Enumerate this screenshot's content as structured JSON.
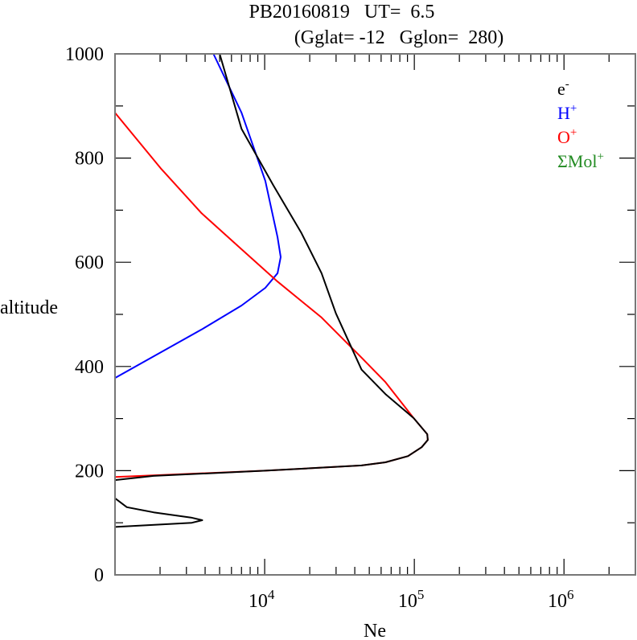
{
  "chart_data": {
    "type": "line",
    "title_line1": "PB20160819   UT=  6.5",
    "title_line2": "(Gglat= -12   Gglon=  280)",
    "xlabel": "Ne",
    "ylabel": "altitude",
    "xscale": "log",
    "xlim": [
      1000,
      3000000
    ],
    "ylim": [
      0,
      1000
    ],
    "y_ticks": [
      0,
      200,
      400,
      600,
      800,
      1000
    ],
    "x_ticks": [
      {
        "base": "10",
        "exp": "4",
        "value": 10000
      },
      {
        "base": "10",
        "exp": "5",
        "value": 100000
      },
      {
        "base": "10",
        "exp": "6",
        "value": 1000000
      }
    ],
    "legend_placement": "top-right",
    "series": [
      {
        "name": "e",
        "sup": "-",
        "color": "#000000",
        "segments": [
          [
            [
              1000,
              92
            ],
            [
              3260,
              100
            ],
            [
              3830,
              105
            ],
            [
              3220,
              110
            ],
            [
              1810,
              120
            ],
            [
              1200,
              130
            ],
            [
              1000,
              147
            ]
          ],
          [
            [
              1000,
              182
            ],
            [
              1810,
              190
            ],
            [
              10100,
              200
            ],
            [
              44400,
              210
            ],
            [
              64100,
              216
            ],
            [
              90600,
              228
            ],
            [
              112000,
              245
            ],
            [
              123000,
              259
            ],
            [
              122000,
              270
            ],
            [
              99000,
              301
            ],
            [
              64100,
              347
            ],
            [
              44400,
              394
            ],
            [
              29900,
              502
            ],
            [
              24000,
              579
            ],
            [
              17600,
              656
            ],
            [
              11400,
              748
            ],
            [
              7000,
              856
            ],
            [
              5000,
              1000
            ]
          ]
        ]
      },
      {
        "name": "H",
        "sup": "+",
        "color": "#0000ff",
        "segments": [
          [
            [
              1000,
              378
            ],
            [
              3790,
              471
            ],
            [
              7000,
              517
            ],
            [
              10100,
              551
            ],
            [
              12200,
              579
            ],
            [
              12800,
              610
            ],
            [
              12200,
              648
            ],
            [
              10100,
              756
            ],
            [
              7000,
              887
            ],
            [
              4550,
              1000
            ]
          ]
        ]
      },
      {
        "name": "O",
        "sup": "+",
        "color": "#ff0000",
        "segments": [
          [
            [
              1000,
              188
            ],
            [
              10100,
              200
            ],
            [
              44400,
              210
            ],
            [
              64100,
              216
            ],
            [
              90600,
              228
            ],
            [
              112000,
              245
            ],
            [
              123000,
              259
            ],
            [
              122000,
              270
            ],
            [
              99000,
              301
            ],
            [
              64100,
              370
            ],
            [
              44400,
              417
            ],
            [
              24000,
              494
            ],
            [
              12200,
              563
            ],
            [
              7000,
              625
            ],
            [
              3790,
              694
            ],
            [
              2040,
              779
            ],
            [
              1000,
              887
            ]
          ]
        ]
      },
      {
        "name": "ΣMol",
        "sup": "+",
        "color": "#228b22",
        "segments": []
      }
    ]
  }
}
